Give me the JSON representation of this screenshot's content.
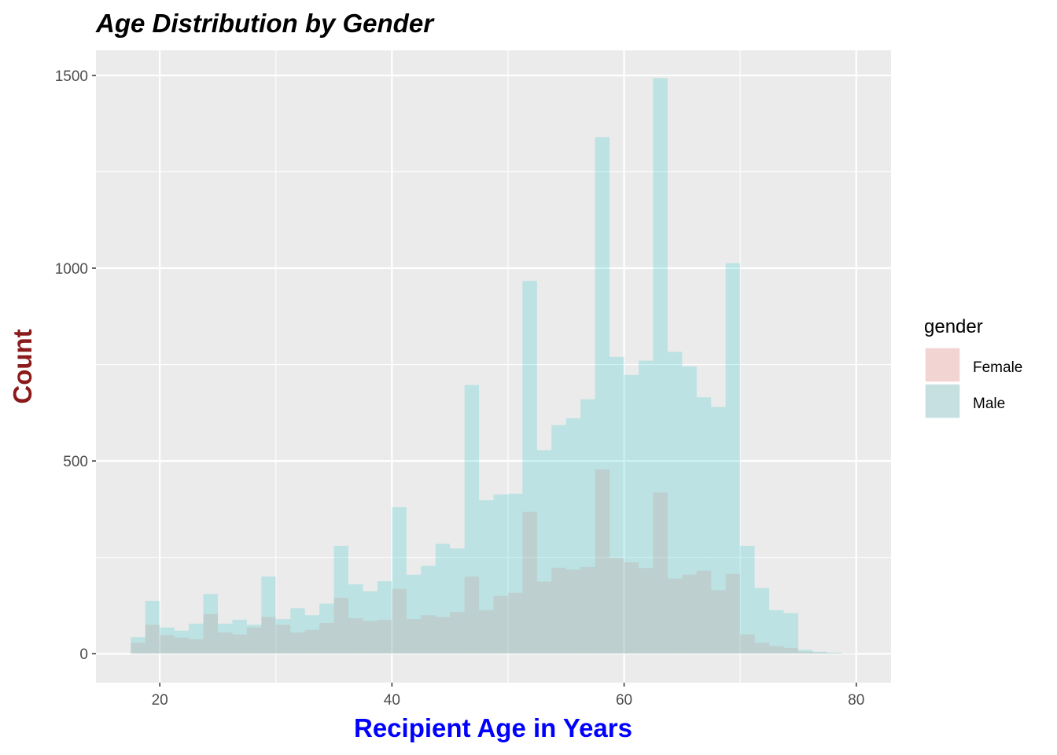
{
  "chart_data": {
    "type": "histogram",
    "title": "Age Distribution by Gender",
    "xlabel": "Recipient Age in Years",
    "ylabel": "Count",
    "xlim": [
      14.5,
      83
    ],
    "ylim": [
      -75,
      1565
    ],
    "x_ticks": [
      20,
      40,
      60,
      80
    ],
    "y_ticks": [
      0,
      500,
      1000,
      1500
    ],
    "x_minor_ticks": [
      30,
      50,
      70
    ],
    "y_minor_ticks": [
      250,
      750,
      1250
    ],
    "bin_width": 1.25,
    "bin_starts": [
      17.5,
      18.75,
      20,
      21.25,
      22.5,
      23.75,
      25,
      26.25,
      27.5,
      28.75,
      30,
      31.25,
      32.5,
      33.75,
      35,
      36.25,
      37.5,
      38.75,
      40,
      41.25,
      42.5,
      43.75,
      45,
      46.25,
      47.5,
      48.75,
      50,
      51.25,
      52.5,
      53.75,
      55,
      56.25,
      57.5,
      58.75,
      60,
      61.25,
      62.5,
      63.75,
      65,
      66.25,
      67.5,
      68.75,
      70,
      71.25,
      72.5,
      73.75,
      75,
      76.25,
      77.5,
      78.75
    ],
    "series": [
      {
        "name": "Female",
        "color": "#f8766d",
        "values": [
          28,
          75,
          48,
          42,
          38,
          103,
          55,
          50,
          68,
          95,
          75,
          55,
          62,
          80,
          145,
          92,
          85,
          88,
          168,
          90,
          100,
          95,
          108,
          200,
          113,
          150,
          158,
          368,
          187,
          223,
          218,
          225,
          478,
          248,
          237,
          222,
          418,
          195,
          205,
          215,
          165,
          207,
          50,
          28,
          20,
          15,
          5,
          3,
          2,
          1
        ]
      },
      {
        "name": "Male",
        "color": "#00bfc4",
        "values": [
          43,
          137,
          68,
          60,
          78,
          155,
          78,
          88,
          75,
          200,
          90,
          118,
          100,
          130,
          280,
          180,
          162,
          188,
          380,
          205,
          228,
          285,
          273,
          697,
          398,
          413,
          415,
          967,
          528,
          593,
          611,
          660,
          1340,
          770,
          723,
          760,
          1493,
          783,
          745,
          665,
          640,
          1013,
          280,
          170,
          113,
          105,
          10,
          5,
          3,
          1
        ]
      }
    ],
    "legend": {
      "title": "gender",
      "placement": "right",
      "entries": [
        "Female",
        "Male"
      ]
    },
    "grid": true
  }
}
